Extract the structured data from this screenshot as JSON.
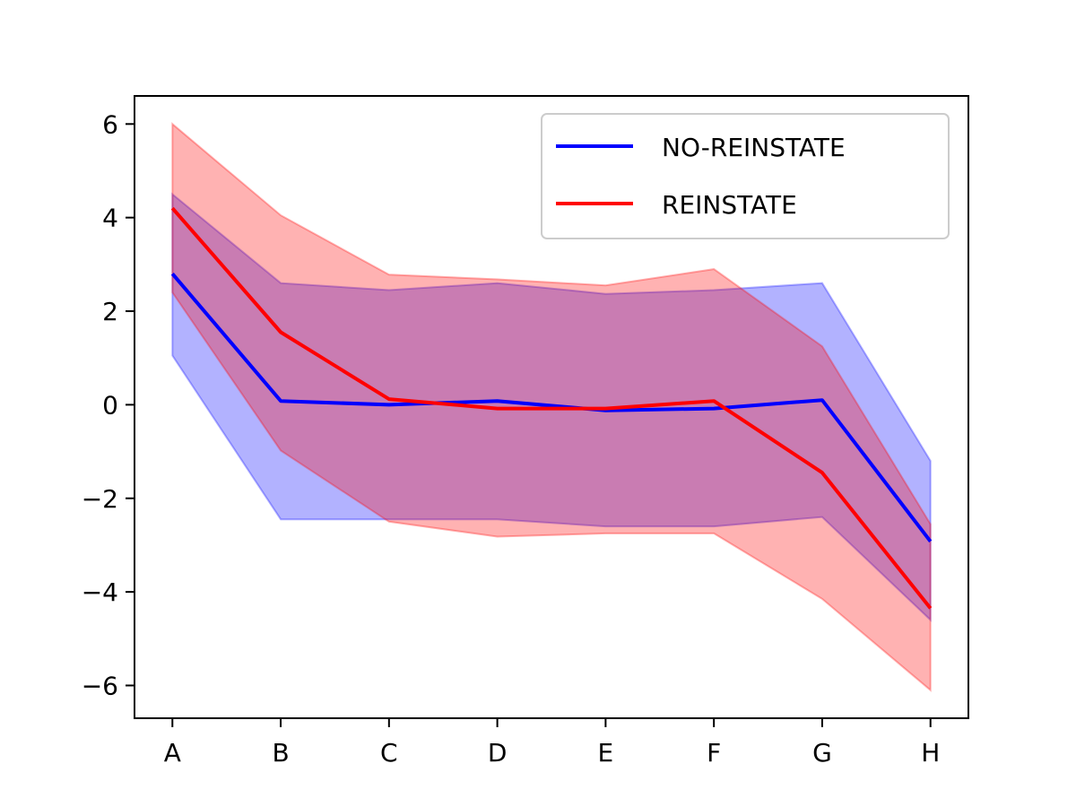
{
  "chart_data": {
    "type": "line",
    "title": "",
    "xlabel": "",
    "ylabel": "",
    "categories": [
      "A",
      "B",
      "C",
      "D",
      "E",
      "F",
      "G",
      "H"
    ],
    "xlim": [
      -0.35,
      7.35
    ],
    "ylim": [
      -6.7,
      6.6
    ],
    "yticks": [
      -6,
      -4,
      -2,
      0,
      2,
      4,
      6
    ],
    "ytick_labels": [
      "−6",
      "−4",
      "−2",
      "0",
      "2",
      "4",
      "6"
    ],
    "grid": false,
    "legend": "top-right",
    "series": [
      {
        "name": "NO-REINSTATE",
        "color": "#0000ff",
        "band_color": "#0000ff",
        "values": [
          2.8,
          0.08,
          0.0,
          0.08,
          -0.12,
          -0.08,
          0.1,
          -2.92
        ],
        "lower": [
          1.05,
          -2.45,
          -2.45,
          -2.45,
          -2.6,
          -2.6,
          -2.4,
          -4.6
        ],
        "upper": [
          4.5,
          2.6,
          2.45,
          2.6,
          2.37,
          2.45,
          2.6,
          -1.2
        ]
      },
      {
        "name": "REINSTATE",
        "color": "#ff0000",
        "band_color": "#ff0000",
        "values": [
          4.2,
          1.55,
          0.12,
          -0.08,
          -0.08,
          0.08,
          -1.45,
          -4.35
        ],
        "lower": [
          2.4,
          -0.98,
          -2.5,
          -2.82,
          -2.75,
          -2.75,
          -4.15,
          -6.1
        ],
        "upper": [
          6.0,
          4.05,
          2.78,
          2.68,
          2.55,
          2.9,
          1.25,
          -2.55
        ]
      }
    ]
  }
}
